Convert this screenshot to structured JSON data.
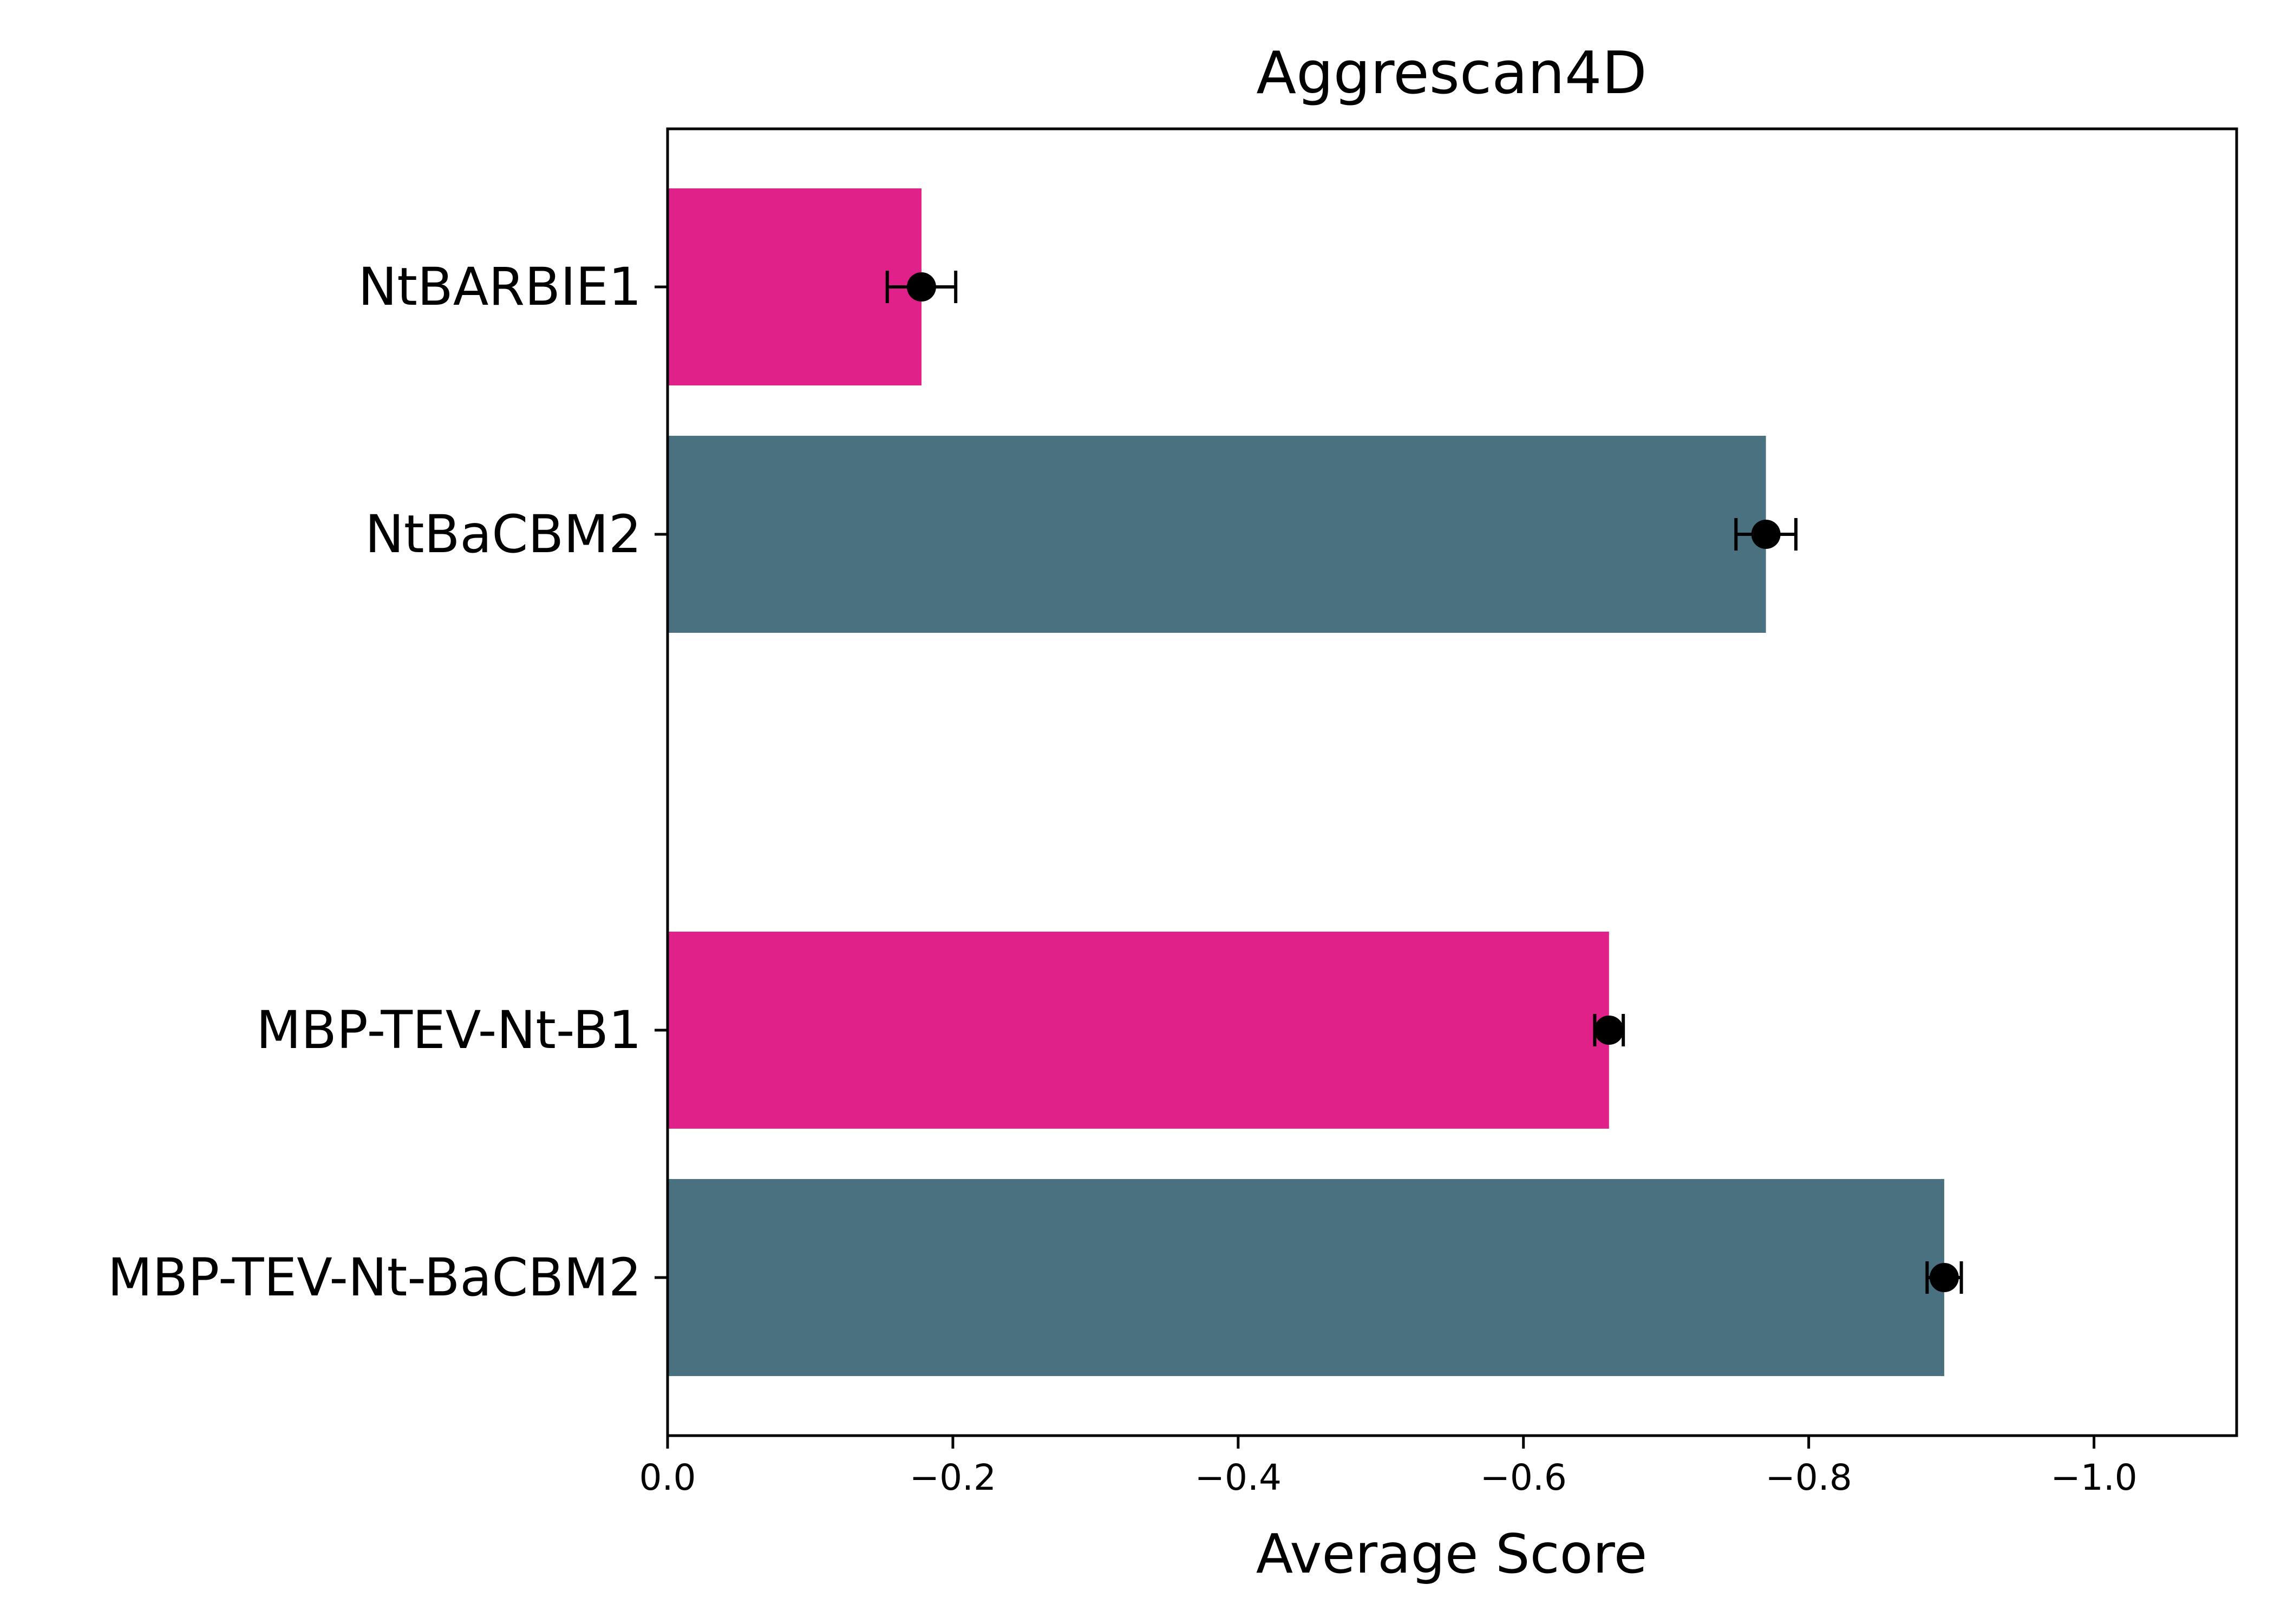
{
  "chart_data": {
    "type": "bar",
    "orientation": "horizontal",
    "title": "Aggrescan4D",
    "xlabel": "Average Score",
    "ylabel": "",
    "xlim": [
      0.0,
      -1.1
    ],
    "x_inverted": true,
    "xticks": [
      0.0,
      -0.2,
      -0.4,
      -0.6,
      -0.8,
      -1.0
    ],
    "xtick_labels": [
      "0.0",
      "−0.2",
      "−0.4",
      "−0.6",
      "−0.8",
      "−1.0"
    ],
    "grid": false,
    "legend": "none",
    "categories": [
      "NtBARBIE1",
      "NtBaCBM2",
      "MBP-TEV-Nt-B1",
      "MBP-TEV-Nt-BaCBM2"
    ],
    "values": [
      -0.178,
      -0.77,
      -0.66,
      -0.895
    ],
    "error": [
      0.024,
      0.021,
      0.01,
      0.012
    ],
    "colors": [
      "#e0218a",
      "#4a7180",
      "#e0218a",
      "#4a7180"
    ],
    "groups": [
      [
        "NtBARBIE1",
        "NtBaCBM2"
      ],
      [
        "MBP-TEV-Nt-B1",
        "MBP-TEV-Nt-BaCBM2"
      ]
    ]
  }
}
